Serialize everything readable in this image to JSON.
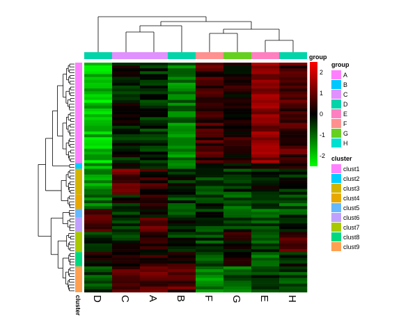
{
  "chart_data": {
    "type": "heatmap",
    "title": "",
    "columns": [
      "D",
      "C",
      "A",
      "B",
      "F",
      "G",
      "E",
      "H"
    ],
    "column_group_label": "group",
    "column_groups": [
      "D",
      "C",
      "C",
      "D",
      "F",
      "G",
      "E",
      "D"
    ],
    "row_annotation_label": "cluster",
    "value_range": [
      -2.5,
      2.5
    ],
    "colorbar_ticks": [
      2,
      1,
      0,
      -1,
      -2
    ],
    "colorbar_colors": {
      "low": "#00ff00",
      "mid": "#000000",
      "high": "#ff0000"
    },
    "group_legend": {
      "title": "group",
      "items": [
        {
          "label": "A",
          "color": "#ff80ff"
        },
        {
          "label": "B",
          "color": "#00c8ff"
        },
        {
          "label": "C",
          "color": "#e090ff"
        },
        {
          "label": "D",
          "color": "#00d4a8"
        },
        {
          "label": "E",
          "color": "#ff80c0"
        },
        {
          "label": "F",
          "color": "#ff9090"
        },
        {
          "label": "G",
          "color": "#66d020"
        },
        {
          "label": "H",
          "color": "#00e0d0"
        }
      ]
    },
    "cluster_legend": {
      "title": "cluster",
      "items": [
        {
          "label": "clust1",
          "color": "#ff80ff"
        },
        {
          "label": "clust2",
          "color": "#00ccff"
        },
        {
          "label": "clust3",
          "color": "#d4b400"
        },
        {
          "label": "clust4",
          "color": "#e8a800"
        },
        {
          "label": "clust5",
          "color": "#66b8ff"
        },
        {
          "label": "clust6",
          "color": "#c0a0ff"
        },
        {
          "label": "clust7",
          "color": "#a8c800"
        },
        {
          "label": "clust8",
          "color": "#00d880"
        },
        {
          "label": "clust9",
          "color": "#ffa050"
        }
      ]
    },
    "clusters": [
      {
        "name": "clust1",
        "rows": 35,
        "profile": [
          -1.9,
          -0.2,
          -0.4,
          -1.2,
          0.6,
          0.3,
          1.3,
          0.7
        ]
      },
      {
        "name": "clust2",
        "rows": 2,
        "profile": [
          -1.5,
          0.2,
          -0.3,
          -1.0,
          -0.2,
          -0.4,
          0.3,
          0.4
        ]
      },
      {
        "name": "clust3",
        "rows": 9,
        "profile": [
          -1.6,
          1.0,
          0.4,
          -0.3,
          -0.5,
          -0.5,
          -0.3,
          -0.4
        ]
      },
      {
        "name": "clust4",
        "rows": 5,
        "profile": [
          -1.1,
          -0.2,
          0.6,
          -0.6,
          -0.4,
          -0.8,
          -0.5,
          -0.8
        ]
      },
      {
        "name": "clust5",
        "rows": 3,
        "profile": [
          0.5,
          -0.4,
          0.2,
          -0.5,
          -0.4,
          -0.6,
          -0.8,
          -0.6
        ]
      },
      {
        "name": "clust6",
        "rows": 5,
        "profile": [
          0.5,
          -0.4,
          0.8,
          -0.4,
          -0.7,
          -0.5,
          -0.7,
          -0.3
        ]
      },
      {
        "name": "clust7",
        "rows": 7,
        "profile": [
          -0.3,
          -0.3,
          0.4,
          -0.4,
          -0.6,
          0.2,
          -0.6,
          0.9
        ]
      },
      {
        "name": "clust8",
        "rows": 5,
        "profile": [
          0.3,
          0.1,
          0.3,
          0.3,
          -0.6,
          0.4,
          -0.9,
          -0.3
        ]
      },
      {
        "name": "clust9",
        "rows": 9,
        "profile": [
          -0.6,
          0.8,
          0.8,
          0.8,
          -1.2,
          -0.9,
          -0.4,
          -0.7
        ]
      }
    ]
  }
}
